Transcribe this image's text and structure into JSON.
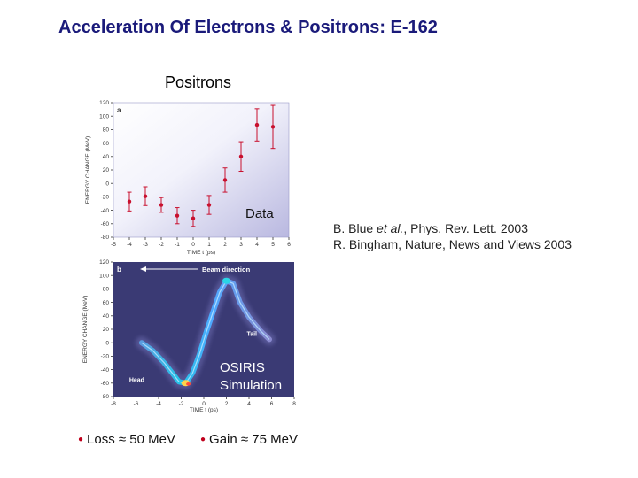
{
  "title": "Acceleration Of Electrons & Positrons: E-162",
  "subtitle": "Positrons",
  "refs": {
    "line1_a": "B. Blue ",
    "line1_em": "et al.",
    "line1_b": ", Phys. Rev. Lett. 2003",
    "line2": "R. Bingham, Nature, News and Views 2003"
  },
  "bullets": [
    "Loss ≈ 50 MeV",
    "Gain ≈ 75 MeV"
  ],
  "colors": {
    "title": "#1a1a7a",
    "data_marker": "#c8102e",
    "sim_background": "#3a3a74",
    "bullet": "#c0001c"
  },
  "chart_data": [
    {
      "type": "scatter",
      "panel_label": "a",
      "annotation": "Data",
      "xlabel": "TIME t (ps)",
      "ylabel": "ENERGY CHANGE (MeV)",
      "xlim": [
        -5,
        6
      ],
      "ylim": [
        -80,
        120
      ],
      "xticks": [
        -5,
        -4,
        -3,
        -2,
        -1,
        0,
        1,
        2,
        3,
        4,
        5,
        6
      ],
      "yticks": [
        -80,
        -60,
        -40,
        -20,
        0,
        20,
        40,
        60,
        80,
        100,
        120
      ],
      "points": [
        {
          "x": -4.0,
          "y": -27,
          "err": 14
        },
        {
          "x": -3.0,
          "y": -19,
          "err": 14
        },
        {
          "x": -2.0,
          "y": -32,
          "err": 11
        },
        {
          "x": -1.0,
          "y": -48,
          "err": 12
        },
        {
          "x": 0.0,
          "y": -52,
          "err": 12
        },
        {
          "x": 1.0,
          "y": -32,
          "err": 14
        },
        {
          "x": 2.0,
          "y": 5,
          "err": 18
        },
        {
          "x": 3.0,
          "y": 40,
          "err": 22
        },
        {
          "x": 4.0,
          "y": 87,
          "err": 24
        },
        {
          "x": 5.0,
          "y": 84,
          "err": 32
        }
      ]
    },
    {
      "type": "heatmap",
      "panel_label": "b",
      "annotation_lines": [
        "OSIRIS",
        "Simulation"
      ],
      "labels": {
        "beam": "Beam direction",
        "tail": "Tail",
        "head": "Head"
      },
      "xlabel": "TIME t (ps)",
      "ylabel": "ENERGY CHANGE (MeV)",
      "xlim": [
        -8,
        8
      ],
      "ylim": [
        -80,
        120
      ],
      "xticks": [
        -8,
        -6,
        -4,
        -2,
        0,
        2,
        4,
        6,
        8
      ],
      "yticks": [
        -80,
        -60,
        -40,
        -20,
        0,
        20,
        40,
        60,
        80,
        100,
        120
      ],
      "ridge": [
        {
          "x": -5.5,
          "y": 0
        },
        {
          "x": -4.5,
          "y": -12
        },
        {
          "x": -3.5,
          "y": -30
        },
        {
          "x": -2.8,
          "y": -45
        },
        {
          "x": -2.2,
          "y": -58
        },
        {
          "x": -1.6,
          "y": -60
        },
        {
          "x": -1.0,
          "y": -45
        },
        {
          "x": -0.4,
          "y": -18
        },
        {
          "x": 0.2,
          "y": 15
        },
        {
          "x": 0.8,
          "y": 45
        },
        {
          "x": 1.4,
          "y": 75
        },
        {
          "x": 2.0,
          "y": 92
        },
        {
          "x": 2.6,
          "y": 88
        },
        {
          "x": 3.2,
          "y": 60
        },
        {
          "x": 4.0,
          "y": 38
        },
        {
          "x": 5.0,
          "y": 18
        },
        {
          "x": 5.8,
          "y": 5
        }
      ]
    }
  ]
}
